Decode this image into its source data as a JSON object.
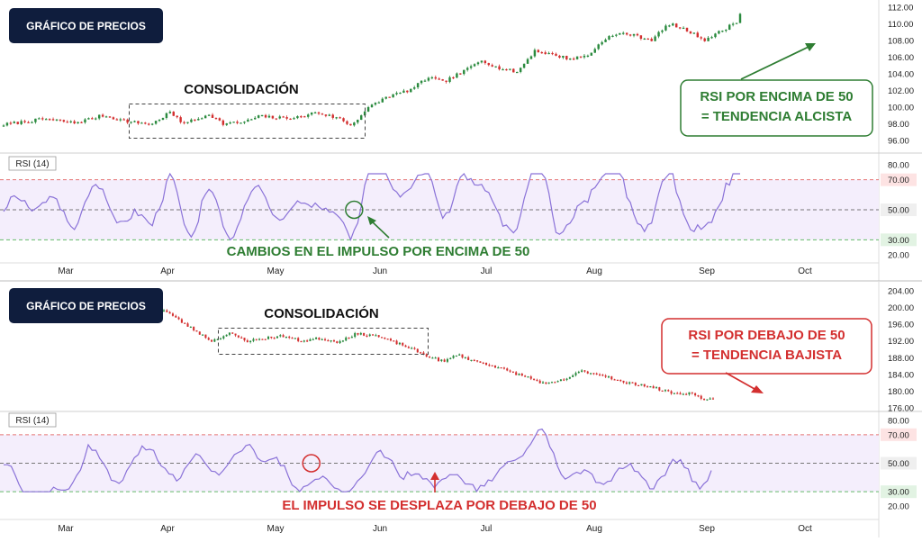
{
  "chart_data": [
    {
      "type": "candlestick",
      "title": "GRÁFICO DE PRECIOS",
      "annotation_box": "CONSOLIDACIÓN",
      "note": [
        "RSI POR ENCIMA DE 50",
        "= TENDENCIA ALCISTA"
      ],
      "x_ticks": [
        "Mar",
        "Apr",
        "May",
        "Jun",
        "Jul",
        "Aug",
        "Sep",
        "Oct"
      ],
      "y_ticks": [
        "112.00",
        "110.00",
        "108.00",
        "106.00",
        "104.00",
        "102.00",
        "100.00",
        "98.00",
        "96.00"
      ],
      "ylim": [
        95,
        112.8
      ],
      "anchors": [
        [
          0,
          97.9
        ],
        [
          12,
          98.6
        ],
        [
          20,
          98.1
        ],
        [
          28,
          99.0
        ],
        [
          36,
          98.2
        ],
        [
          42,
          98.0
        ],
        [
          47,
          99.4
        ],
        [
          50,
          98.2
        ],
        [
          54,
          98.4
        ],
        [
          58,
          99.2
        ],
        [
          62,
          98.0
        ],
        [
          68,
          98.2
        ],
        [
          72,
          98.9
        ],
        [
          78,
          98.7
        ],
        [
          84,
          98.8
        ],
        [
          88,
          99.4
        ],
        [
          95,
          98.6
        ],
        [
          98,
          97.8
        ],
        [
          103,
          99.9
        ],
        [
          108,
          101.2
        ],
        [
          115,
          102.1
        ],
        [
          120,
          103.6
        ],
        [
          124,
          103.0
        ],
        [
          130,
          104.3
        ],
        [
          135,
          105.7
        ],
        [
          139,
          104.8
        ],
        [
          145,
          104.2
        ],
        [
          150,
          106.8
        ],
        [
          155,
          106.3
        ],
        [
          160,
          105.8
        ],
        [
          165,
          106.2
        ],
        [
          170,
          108.3
        ],
        [
          175,
          108.9
        ],
        [
          179,
          108.5
        ],
        [
          183,
          108.1
        ],
        [
          188,
          110.0
        ],
        [
          193,
          109.2
        ],
        [
          198,
          108.1
        ],
        [
          203,
          109.2
        ],
        [
          207,
          110.3
        ],
        [
          208,
          111.2
        ]
      ],
      "series_length": 209,
      "consolidation_range": [
        36,
        99
      ],
      "rsi": {
        "label": "RSI (14)",
        "levels": [
          70,
          50,
          30
        ],
        "level_labels": [
          "70.00",
          "50.00",
          "30.00"
        ],
        "y_ticks": [
          "80.00",
          "20.00"
        ],
        "ylim": [
          17,
          83
        ],
        "highlight_index": 99,
        "annotation": "CAMBIOS EN EL IMPULSO POR ENCIMA DE 50"
      },
      "colors": {
        "up": "#2a8a3e",
        "down": "#d32f2f",
        "note": "#2e7d32",
        "rsi_line": "#8a72d8"
      }
    },
    {
      "type": "candlestick",
      "title": "GRÁFICO DE PRECIOS",
      "annotation_box": "CONSOLIDACIÓN",
      "note": [
        "RSI POR DEBAJO DE 50",
        "= TENDENCIA BAJISTA"
      ],
      "x_ticks": [
        "Mar",
        "Apr",
        "May",
        "Jun",
        "Jul",
        "Aug",
        "Sep",
        "Oct"
      ],
      "y_ticks": [
        "204.00",
        "200.00",
        "196.00",
        "192.00",
        "188.00",
        "184.00",
        "180.00",
        "176.00"
      ],
      "ylim": [
        175.5,
        205.5
      ],
      "anchors": [
        [
          0,
          199.5
        ],
        [
          6,
          196.5
        ],
        [
          12,
          193.8
        ],
        [
          16,
          192.0
        ],
        [
          22,
          193.8
        ],
        [
          28,
          192.0
        ],
        [
          35,
          192.8
        ],
        [
          40,
          193.2
        ],
        [
          46,
          192.0
        ],
        [
          52,
          192.6
        ],
        [
          58,
          191.8
        ],
        [
          64,
          193.6
        ],
        [
          70,
          193.5
        ],
        [
          76,
          192.0
        ],
        [
          80,
          191.0
        ],
        [
          88,
          188.5
        ],
        [
          94,
          187.0
        ],
        [
          98,
          188.8
        ],
        [
          104,
          187.2
        ],
        [
          110,
          186.2
        ],
        [
          116,
          184.6
        ],
        [
          122,
          183.3
        ],
        [
          128,
          181.6
        ],
        [
          134,
          182.7
        ],
        [
          140,
          184.8
        ],
        [
          148,
          183.7
        ],
        [
          154,
          182.0
        ],
        [
          160,
          181.6
        ],
        [
          166,
          180.4
        ],
        [
          172,
          179.3
        ],
        [
          176,
          179.6
        ],
        [
          180,
          178.4
        ],
        [
          184,
          177.8
        ]
      ],
      "series_length": 185,
      "consolidation_range": [
        16,
        78
      ],
      "rsi": {
        "label": "RSI (14)",
        "levels": [
          70,
          50,
          30
        ],
        "level_labels": [
          "70.00",
          "50.00",
          "30.00"
        ],
        "y_ticks": [
          "80.00",
          "20.00"
        ],
        "ylim": [
          17,
          83
        ],
        "highlight_index": 80,
        "annotation": "EL IMPULSO SE DESPLAZA POR DEBAJO DE 50"
      },
      "colors": {
        "up": "#2a8a3e",
        "down": "#d32f2f",
        "note": "#d32f2f",
        "rsi_line": "#8a72d8"
      }
    }
  ]
}
